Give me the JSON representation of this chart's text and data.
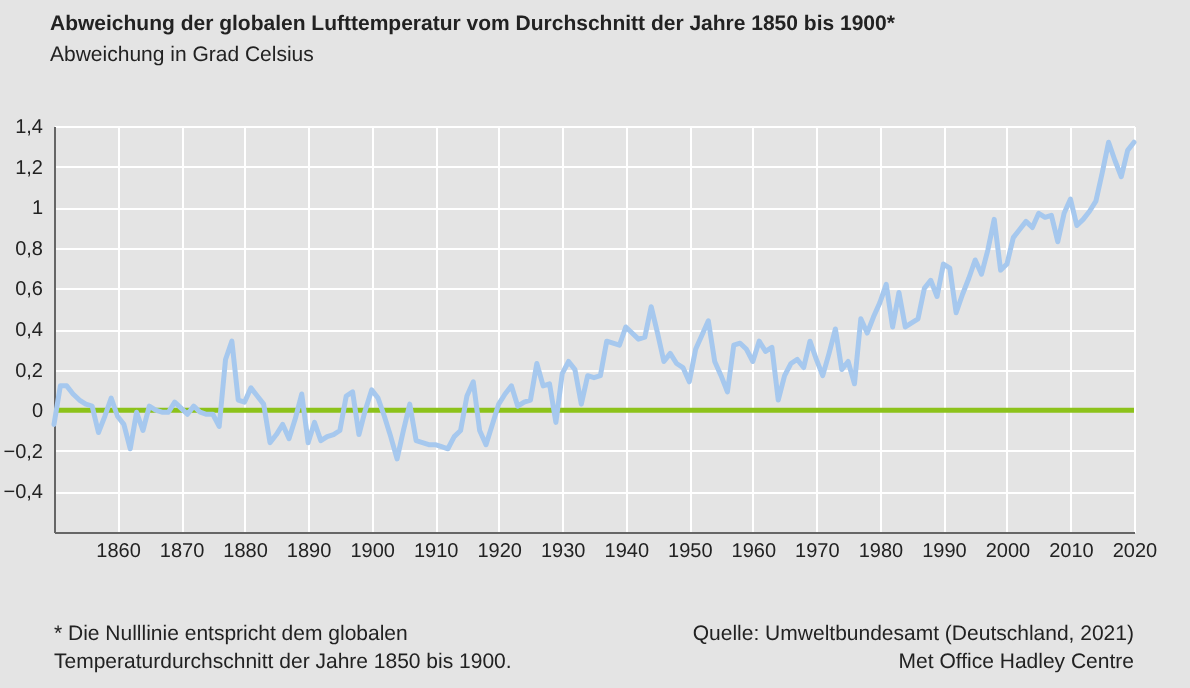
{
  "chart_data": {
    "type": "line",
    "title": "Abweichung der globalen Lufttemperatur vom Durchschnitt der Jahre 1850 bis 1900*",
    "subtitle": "Abweichung in Grad Celsius",
    "x": [
      1850,
      1851,
      1852,
      1853,
      1854,
      1855,
      1856,
      1857,
      1858,
      1859,
      1860,
      1861,
      1862,
      1863,
      1864,
      1865,
      1866,
      1867,
      1868,
      1869,
      1870,
      1871,
      1872,
      1873,
      1874,
      1875,
      1876,
      1877,
      1878,
      1879,
      1880,
      1881,
      1882,
      1883,
      1884,
      1885,
      1886,
      1887,
      1888,
      1889,
      1890,
      1891,
      1892,
      1893,
      1894,
      1895,
      1896,
      1897,
      1898,
      1899,
      1900,
      1901,
      1902,
      1903,
      1904,
      1905,
      1906,
      1907,
      1908,
      1909,
      1910,
      1911,
      1912,
      1913,
      1914,
      1915,
      1916,
      1917,
      1918,
      1919,
      1920,
      1921,
      1922,
      1923,
      1924,
      1925,
      1926,
      1927,
      1928,
      1929,
      1930,
      1931,
      1932,
      1933,
      1934,
      1935,
      1936,
      1937,
      1938,
      1939,
      1940,
      1941,
      1942,
      1943,
      1944,
      1945,
      1946,
      1947,
      1948,
      1949,
      1950,
      1951,
      1952,
      1953,
      1954,
      1955,
      1956,
      1957,
      1958,
      1959,
      1960,
      1961,
      1962,
      1963,
      1964,
      1965,
      1966,
      1967,
      1968,
      1969,
      1970,
      1971,
      1972,
      1973,
      1974,
      1975,
      1976,
      1977,
      1978,
      1979,
      1980,
      1981,
      1982,
      1983,
      1984,
      1985,
      1986,
      1987,
      1988,
      1989,
      1990,
      1991,
      1992,
      1993,
      1994,
      1995,
      1996,
      1997,
      1998,
      1999,
      2000,
      2001,
      2002,
      2003,
      2004,
      2005,
      2006,
      2007,
      2008,
      2009,
      2010,
      2011,
      2012,
      2013,
      2014,
      2015,
      2016,
      2017,
      2018,
      2019,
      2020
    ],
    "series": [
      {
        "color": "#a6c8ee",
        "values": [
          -0.07,
          0.12,
          0.12,
          0.08,
          0.05,
          0.03,
          0.02,
          -0.11,
          -0.03,
          0.06,
          -0.03,
          -0.07,
          -0.19,
          -0.01,
          -0.1,
          0.02,
          0.0,
          -0.01,
          -0.01,
          0.04,
          0.01,
          -0.02,
          0.02,
          -0.01,
          -0.02,
          -0.02,
          -0.08,
          0.25,
          0.34,
          0.05,
          0.04,
          0.11,
          0.07,
          0.03,
          -0.16,
          -0.12,
          -0.07,
          -0.14,
          -0.04,
          0.08,
          -0.16,
          -0.06,
          -0.15,
          -0.13,
          -0.12,
          -0.1,
          0.07,
          0.09,
          -0.12,
          0.0,
          0.1,
          0.06,
          -0.03,
          -0.13,
          -0.24,
          -0.1,
          0.03,
          -0.15,
          -0.16,
          -0.17,
          -0.17,
          -0.18,
          -0.19,
          -0.13,
          -0.1,
          0.07,
          0.14,
          -0.1,
          -0.17,
          -0.07,
          0.03,
          0.08,
          0.12,
          0.02,
          0.04,
          0.05,
          0.23,
          0.12,
          0.13,
          -0.06,
          0.18,
          0.24,
          0.2,
          0.03,
          0.17,
          0.16,
          0.17,
          0.34,
          0.33,
          0.32,
          0.41,
          0.38,
          0.35,
          0.36,
          0.51,
          0.38,
          0.24,
          0.28,
          0.23,
          0.21,
          0.14,
          0.3,
          0.37,
          0.44,
          0.24,
          0.17,
          0.09,
          0.32,
          0.33,
          0.3,
          0.24,
          0.34,
          0.29,
          0.31,
          0.05,
          0.17,
          0.23,
          0.25,
          0.21,
          0.34,
          0.25,
          0.17,
          0.28,
          0.4,
          0.2,
          0.24,
          0.13,
          0.45,
          0.38,
          0.46,
          0.53,
          0.62,
          0.41,
          0.58,
          0.41,
          0.43,
          0.45,
          0.6,
          0.64,
          0.56,
          0.72,
          0.7,
          0.48,
          0.57,
          0.65,
          0.74,
          0.67,
          0.79,
          0.94,
          0.69,
          0.72,
          0.85,
          0.89,
          0.93,
          0.9,
          0.97,
          0.95,
          0.96,
          0.83,
          0.97,
          1.04,
          0.91,
          0.94,
          0.98,
          1.03,
          1.17,
          1.32,
          1.23,
          1.15,
          1.28,
          1.32
        ]
      }
    ],
    "xlim": [
      1850,
      2020
    ],
    "xticks": [
      1860,
      1870,
      1880,
      1890,
      1900,
      1910,
      1920,
      1930,
      1940,
      1950,
      1960,
      1970,
      1980,
      1990,
      2000,
      2010,
      2020
    ],
    "ylim": [
      -0.6,
      1.4
    ],
    "yticks": [
      {
        "value": -0.4,
        "label": "−0,4"
      },
      {
        "value": -0.2,
        "label": "−0,2"
      },
      {
        "value": 0,
        "label": "0"
      },
      {
        "value": 0.2,
        "label": "0,2"
      },
      {
        "value": 0.4,
        "label": "0,4"
      },
      {
        "value": 0.6,
        "label": "0,6"
      },
      {
        "value": 0.8,
        "label": "0,8"
      },
      {
        "value": 1,
        "label": "1"
      },
      {
        "value": 1.2,
        "label": "1,2"
      },
      {
        "value": 1.4,
        "label": "1,4"
      }
    ],
    "ref_lines": [
      {
        "axis": "y",
        "value": 0,
        "color": "#8cc21a"
      }
    ],
    "grid": true,
    "line_style": "solid",
    "marker": "none",
    "annotations": [
      "* Die Nulllinie entspricht dem globalen\n   Temperaturdurchschnitt der Jahre 1850 bis 1900.",
      "Quelle: Umweltbundesamt (Deutschland, 2021)\nMet Office Hadley Centre"
    ]
  }
}
